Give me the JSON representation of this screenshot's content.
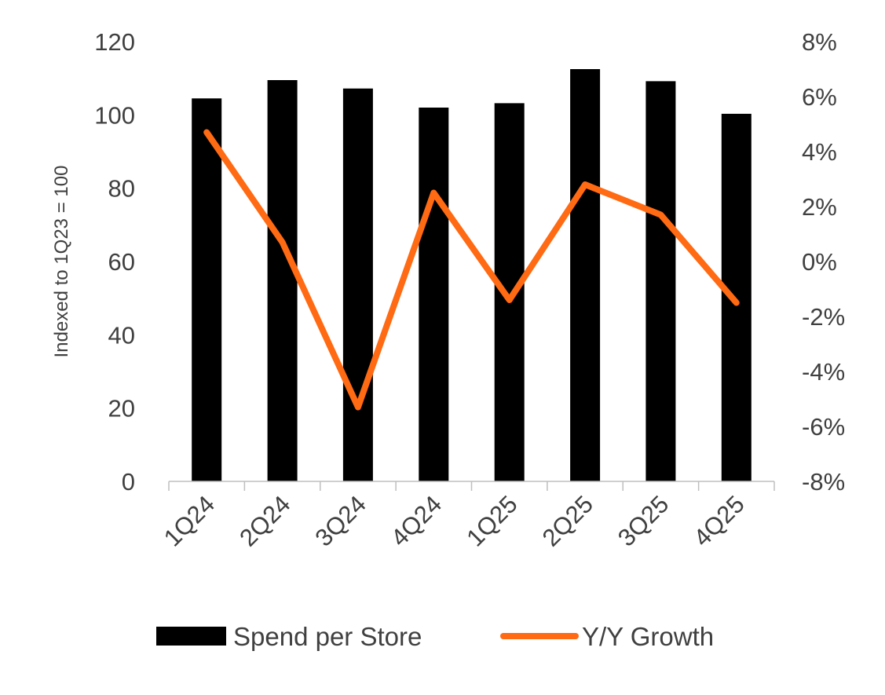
{
  "chart_data": {
    "type": "bar",
    "categories": [
      "1Q24",
      "2Q24",
      "3Q24",
      "4Q24",
      "1Q25",
      "2Q25",
      "3Q25",
      "4Q25"
    ],
    "series": [
      {
        "name": "Spend per Store",
        "type": "bar",
        "axis": "left",
        "color": "#000000",
        "values": [
          104.5,
          109.5,
          107.2,
          102,
          103.2,
          112.5,
          109.2,
          100.3
        ]
      },
      {
        "name": "Y/Y Growth",
        "type": "line",
        "axis": "right",
        "color": "#FF6A13",
        "values": [
          4.7,
          0.7,
          -5.3,
          2.5,
          -1.4,
          2.8,
          1.7,
          -1.5
        ]
      }
    ],
    "ylabel": "Indexed to 1Q23 = 100",
    "ylim": [
      0,
      120
    ],
    "y_ticks": [
      "0",
      "20",
      "40",
      "60",
      "80",
      "100",
      "120"
    ],
    "y2lim": [
      -8,
      8
    ],
    "y2_ticks": [
      "-8%",
      "-6%",
      "-4%",
      "-2%",
      "0%",
      "2%",
      "4%",
      "6%",
      "8%"
    ],
    "x_tick_rotation": "-45deg",
    "grid": false,
    "legend_position": "bottom"
  }
}
